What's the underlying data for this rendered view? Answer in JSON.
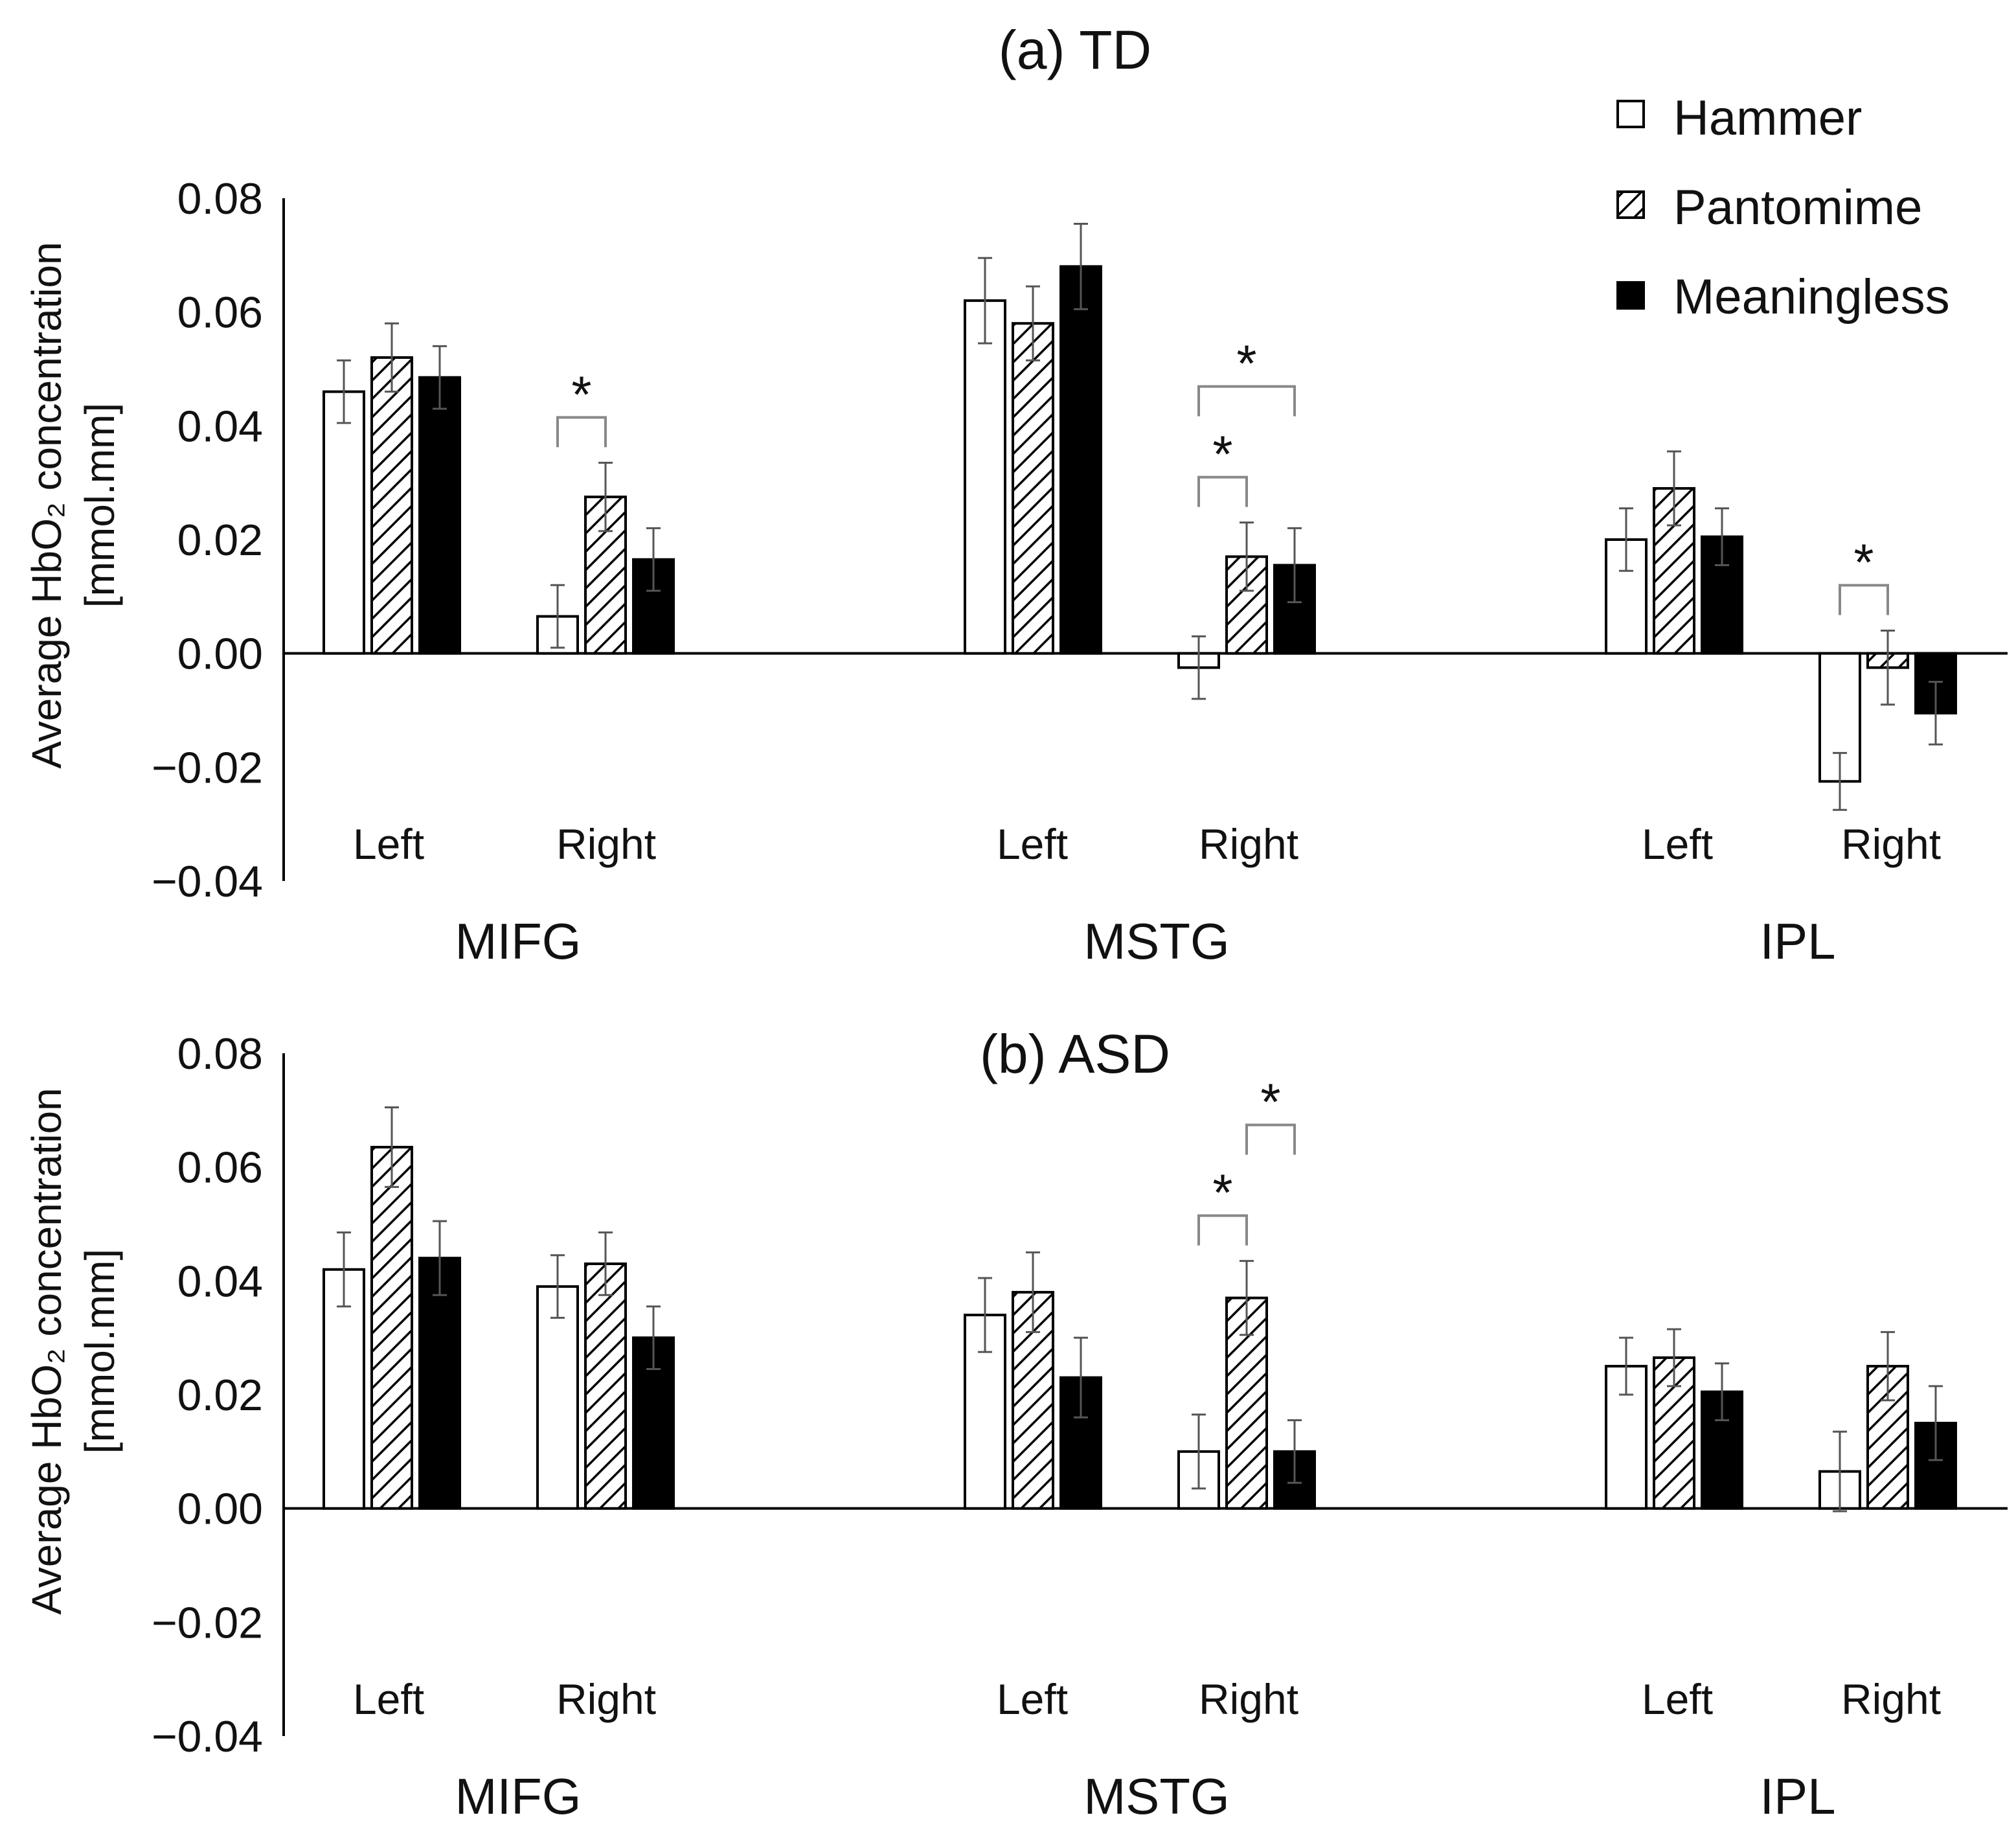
{
  "legend": [
    {
      "label": "Hammer",
      "fill": "#ffffff",
      "pattern": "none"
    },
    {
      "label": "Pantomime",
      "fill": "#ffffff",
      "pattern": "diagonal-hatch"
    },
    {
      "label": "Meaningless",
      "fill": "#000000",
      "pattern": "none"
    }
  ],
  "y_axis": {
    "label_line1": "Average  HbO₂ concentration",
    "label_line2": "[mmol.mm]",
    "tick_labels": [
      "0.08",
      "0.06",
      "0.04",
      "0.02",
      "0.00",
      "−0.02",
      "−0.04"
    ]
  },
  "chart_data": [
    {
      "type": "bar",
      "title": "(a) TD",
      "ylabel": "Average  HbO₂ concentration [mmol.mm]",
      "ylim": [
        -0.04,
        0.08
      ],
      "grid": false,
      "legend_position": "top-right",
      "regions": [
        "MIFG",
        "MSTG",
        "IPL"
      ],
      "sides": [
        "Left",
        "Right"
      ],
      "categories": [
        "MIFG Left",
        "MIFG Right",
        "MSTG Left",
        "MSTG Right",
        "IPL Left",
        "IPL Right"
      ],
      "series": [
        {
          "name": "Hammer",
          "values": [
            0.046,
            0.0065,
            0.062,
            -0.0025,
            0.02,
            -0.0225
          ],
          "errors": [
            0.0055,
            0.0055,
            0.0075,
            0.0055,
            0.0055,
            0.005
          ]
        },
        {
          "name": "Pantomime",
          "values": [
            0.052,
            0.0275,
            0.058,
            0.017,
            0.029,
            -0.0025
          ],
          "errors": [
            0.006,
            0.006,
            0.0065,
            0.006,
            0.0065,
            0.0065
          ]
        },
        {
          "name": "Meaningless",
          "values": [
            0.0485,
            0.0165,
            0.068,
            0.0155,
            0.0205,
            -0.0105
          ],
          "errors": [
            0.0055,
            0.0055,
            0.0075,
            0.0065,
            0.005,
            0.0055
          ]
        }
      ],
      "significance": [
        {
          "category": "MIFG Right",
          "from": "Hammer",
          "to": "Pantomime",
          "label": "*"
        },
        {
          "category": "MSTG Right",
          "from": "Hammer",
          "to": "Pantomime",
          "label": "*"
        },
        {
          "category": "MSTG Right",
          "from": "Hammer",
          "to": "Meaningless",
          "label": "*"
        },
        {
          "category": "IPL Right",
          "from": "Hammer",
          "to": "Pantomime",
          "label": "*"
        }
      ]
    },
    {
      "type": "bar",
      "title": "(b) ASD",
      "ylabel": "Average  HbO₂ concentration [mmol.mm]",
      "ylim": [
        -0.04,
        0.08
      ],
      "grid": false,
      "regions": [
        "MIFG",
        "MSTG",
        "IPL"
      ],
      "sides": [
        "Left",
        "Right"
      ],
      "categories": [
        "MIFG Left",
        "MIFG Right",
        "MSTG Left",
        "MSTG Right",
        "IPL Left",
        "IPL Right"
      ],
      "series": [
        {
          "name": "Hammer",
          "values": [
            0.042,
            0.039,
            0.034,
            0.01,
            0.025,
            0.0065
          ],
          "errors": [
            0.0065,
            0.0055,
            0.0065,
            0.0065,
            0.005,
            0.007
          ]
        },
        {
          "name": "Pantomime",
          "values": [
            0.0635,
            0.043,
            0.038,
            0.037,
            0.0265,
            0.025
          ],
          "errors": [
            0.007,
            0.0055,
            0.007,
            0.0065,
            0.005,
            0.006
          ]
        },
        {
          "name": "Meaningless",
          "values": [
            0.044,
            0.03,
            0.023,
            0.01,
            0.0205,
            0.015
          ],
          "errors": [
            0.0065,
            0.0055,
            0.007,
            0.0055,
            0.005,
            0.0065
          ]
        }
      ],
      "significance": [
        {
          "category": "MSTG Right",
          "from": "Hammer",
          "to": "Pantomime",
          "label": "*"
        },
        {
          "category": "MSTG Right",
          "from": "Pantomime",
          "to": "Meaningless",
          "label": "*"
        }
      ]
    }
  ]
}
